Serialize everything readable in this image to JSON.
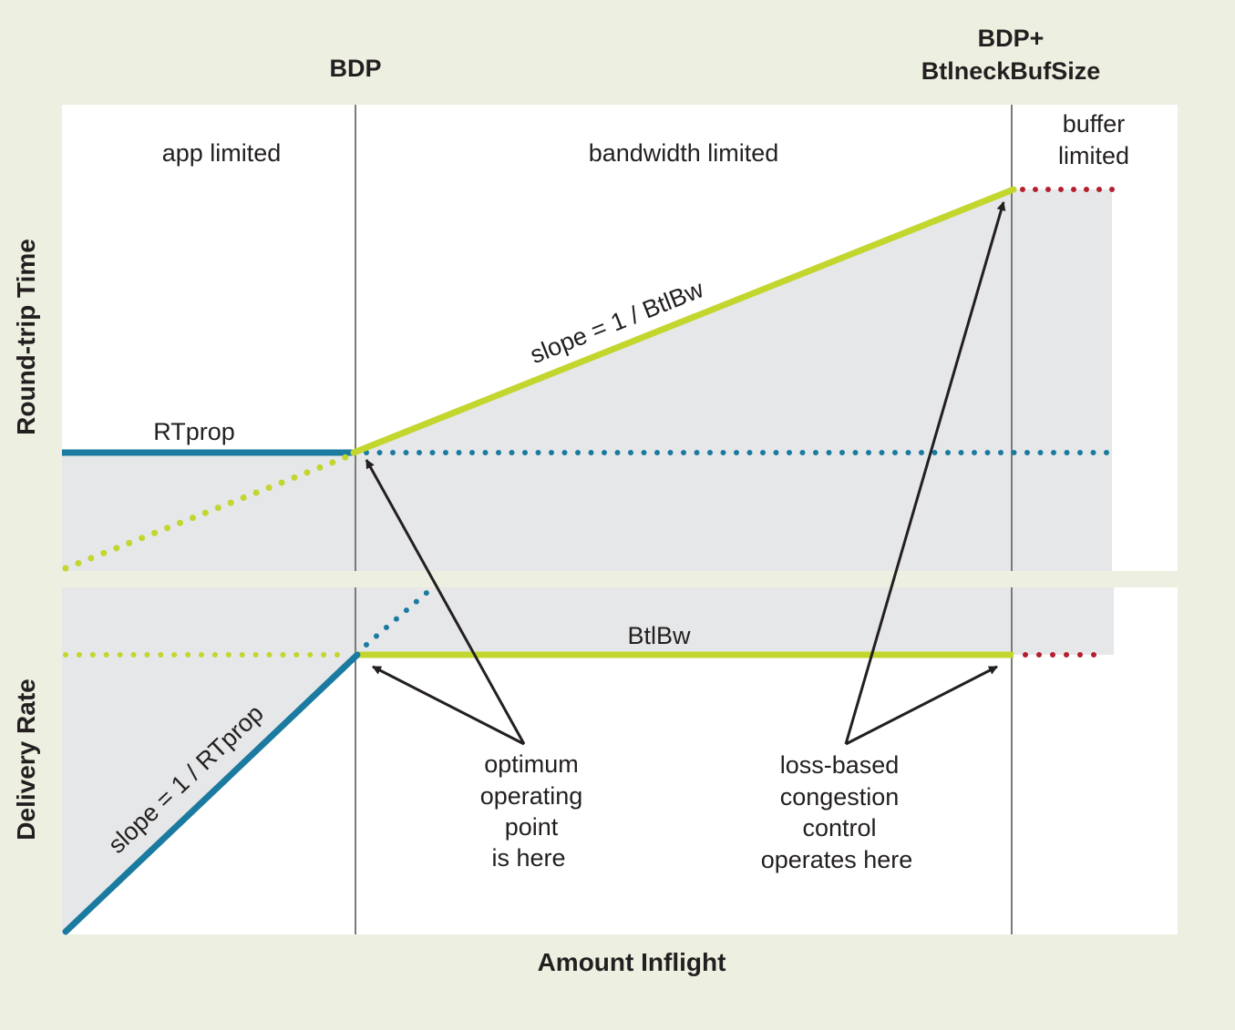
{
  "top_labels": {
    "bdp": "BDP",
    "bdp_plus_line1": "BDP+",
    "bdp_plus_line2": "BtlneckBufSize"
  },
  "regions": {
    "app_limited": "app limited",
    "bandwidth_limited": "bandwidth limited",
    "buffer_limited_line1": "buffer",
    "buffer_limited_line2": "limited"
  },
  "rtt_panel": {
    "rtprop_label": "RTprop",
    "slope_label": "slope = 1 / BtlBw"
  },
  "delivery_panel": {
    "btlbw_label": "BtlBw",
    "slope_label": "slope = 1 / RTprop"
  },
  "annotations": {
    "optimum": [
      "optimum",
      "operating",
      "point",
      "is here"
    ],
    "loss_based": [
      "loss-based",
      "congestion",
      "control",
      "operates here"
    ]
  },
  "axes": {
    "y_top": "Round-trip Time",
    "y_bottom": "Delivery Rate",
    "x": "Amount Inflight"
  },
  "colors": {
    "background": "#edefe0",
    "panel": "#ffffff",
    "shade": "#e6e7e8",
    "green": "#c2d62e",
    "blue": "#1b7aa0",
    "red": "#b51f2e",
    "divider": "#7a7a7a",
    "arrow": "#231f20"
  }
}
